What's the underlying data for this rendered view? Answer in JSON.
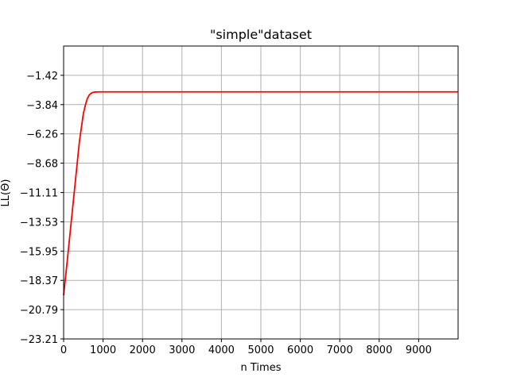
{
  "chart_data": {
    "type": "line",
    "title": "\"simple\"dataset",
    "xlabel": "n Times",
    "ylabel": "LL(Θ)",
    "xlim": [
      0,
      10000
    ],
    "ylim": [
      -23.21,
      1.0
    ],
    "x_ticks": [
      0,
      1000,
      2000,
      3000,
      4000,
      5000,
      6000,
      7000,
      8000,
      9000
    ],
    "x_tick_labels": [
      "0",
      "1000",
      "2000",
      "3000",
      "4000",
      "5000",
      "6000",
      "7000",
      "8000",
      "9000"
    ],
    "y_ticks": [
      -1.42,
      -3.84,
      -6.26,
      -8.68,
      -11.11,
      -13.53,
      -15.95,
      -18.37,
      -20.79,
      -23.21
    ],
    "y_tick_labels": [
      "-1.42",
      "-3.84",
      "-6.26",
      "-8.68",
      "-11.11",
      "-13.53",
      "-15.95",
      "-18.37",
      "-20.79",
      "-23.21"
    ],
    "grid": true,
    "series": [
      {
        "color": "#ff0000",
        "x": [
          0,
          100,
          200,
          300,
          400,
          500,
          550,
          600,
          650,
          700,
          750,
          800,
          900,
          1000,
          2000,
          3000,
          4000,
          5000,
          6000,
          7000,
          8000,
          9000,
          10000
        ],
        "y": [
          -19.6,
          -16.5,
          -13.3,
          -10.1,
          -6.9,
          -4.6,
          -3.9,
          -3.35,
          -3.05,
          -2.9,
          -2.82,
          -2.8,
          -2.79,
          -2.79,
          -2.79,
          -2.79,
          -2.79,
          -2.79,
          -2.79,
          -2.79,
          -2.79,
          -2.79,
          -2.79
        ]
      }
    ]
  }
}
